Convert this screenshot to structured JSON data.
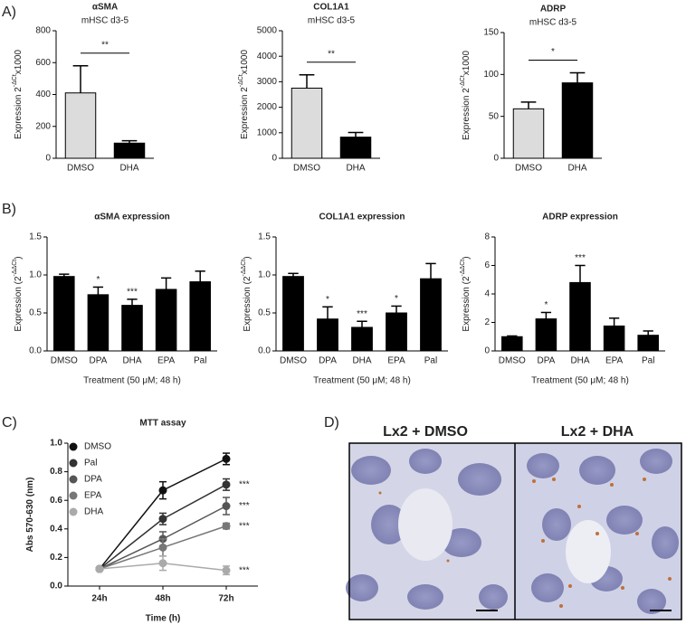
{
  "panel_labels": [
    "A)",
    "B)",
    "C)",
    "D)"
  ],
  "chart_data": [
    {
      "type": "bar",
      "title": "αSMA",
      "subtitle": "mHSC d3-5",
      "y_label": "Expression 2",
      "y_label_sup": "-ΔCt",
      "y_label_suffix": "x1000",
      "categories": [
        "DMSO",
        "DHA"
      ],
      "values": [
        410,
        95
      ],
      "errors": [
        170,
        15
      ],
      "colors": [
        "#dcdcdc",
        "#000000"
      ],
      "ylim": [
        0,
        800
      ],
      "yticks": [
        0,
        200,
        400,
        600,
        800
      ],
      "significance": "**"
    },
    {
      "type": "bar",
      "title": "COL1A1",
      "subtitle": "mHSC d3-5",
      "y_label": "Expression 2",
      "y_label_sup": "-ΔCt",
      "y_label_suffix": "x1000",
      "categories": [
        "DMSO",
        "DHA"
      ],
      "values": [
        2750,
        830
      ],
      "errors": [
        520,
        180
      ],
      "colors": [
        "#dcdcdc",
        "#000000"
      ],
      "ylim": [
        0,
        5000
      ],
      "yticks": [
        0,
        1000,
        2000,
        3000,
        4000,
        5000
      ],
      "significance": "**"
    },
    {
      "type": "bar",
      "title": "ADRP",
      "subtitle": "mHSC d3-5",
      "y_label": "Expression 2",
      "y_label_sup": "-ΔCt",
      "y_label_suffix": "x1000",
      "categories": [
        "DMSO",
        "DHA"
      ],
      "values": [
        59,
        90
      ],
      "errors": [
        8,
        12
      ],
      "colors": [
        "#dcdcdc",
        "#000000"
      ],
      "ylim": [
        0,
        150
      ],
      "yticks": [
        0,
        50,
        100,
        150
      ],
      "significance": "*"
    },
    {
      "type": "bar",
      "title": "αSMA expression",
      "y_label": "Expression (2",
      "y_label_sup": "-ΔΔCt",
      "y_label_suffix": ")",
      "x_label": "Treatment (50 μM; 48 h)",
      "categories": [
        "DMSO",
        "DPA",
        "DHA",
        "EPA",
        "Pal"
      ],
      "values": [
        0.98,
        0.74,
        0.6,
        0.81,
        0.91
      ],
      "errors": [
        0.03,
        0.1,
        0.08,
        0.15,
        0.14
      ],
      "color": "#000000",
      "ylim": [
        0,
        1.5
      ],
      "yticks": [
        {
          "value": 0,
          "label": "0.0"
        },
        {
          "value": 0.5,
          "label": "0.5"
        },
        {
          "value": 1,
          "label": "1.0"
        },
        {
          "value": 1.5,
          "label": "1.5"
        }
      ],
      "significance": [
        null,
        "*",
        "***",
        null,
        null
      ]
    },
    {
      "type": "bar",
      "title": "COL1A1 expression",
      "y_label": "Expression (2",
      "y_label_sup": "-ΔΔCt",
      "y_label_suffix": ")",
      "x_label": "Treatment (50 μM; 48 h)",
      "categories": [
        "DMSO",
        "DPA",
        "DHA",
        "EPA",
        "Pal"
      ],
      "values": [
        0.98,
        0.42,
        0.31,
        0.5,
        0.95
      ],
      "errors": [
        0.04,
        0.16,
        0.08,
        0.09,
        0.2
      ],
      "color": "#000000",
      "ylim": [
        0,
        1.5
      ],
      "yticks": [
        {
          "value": 0,
          "label": "0.0"
        },
        {
          "value": 0.5,
          "label": "0.5"
        },
        {
          "value": 1,
          "label": "1.0"
        },
        {
          "value": 1.5,
          "label": "1.5"
        }
      ],
      "significance": [
        null,
        "*",
        "***",
        "*",
        null
      ]
    },
    {
      "type": "bar",
      "title": "ADRP expression",
      "y_label": "Expression (2",
      "y_label_sup": "-ΔΔCt",
      "y_label_suffix": ")",
      "x_label": "Treatment (50 μM; 48 h)",
      "categories": [
        "DMSO",
        "DPA",
        "DHA",
        "EPA",
        "Pal"
      ],
      "values": [
        1,
        2.25,
        4.8,
        1.75,
        1.1
      ],
      "errors": [
        0.05,
        0.45,
        1.2,
        0.55,
        0.3
      ],
      "color": "#000000",
      "ylim": [
        0,
        8
      ],
      "yticks": [
        0,
        2,
        4,
        6,
        8
      ],
      "significance": [
        null,
        "*",
        "***",
        null,
        null
      ]
    },
    {
      "type": "line",
      "title": "MTT assay",
      "x_label": "Time (h)",
      "y_label": "Abs 570-630 (nm)",
      "categories": [
        "24h",
        "48h",
        "72h"
      ],
      "ylim": [
        0,
        1
      ],
      "yticks": [
        {
          "value": 0,
          "label": "0.0"
        },
        {
          "value": 0.2,
          "label": "0.2"
        },
        {
          "value": 0.4,
          "label": "0.4"
        },
        {
          "value": 0.6,
          "label": "0.6"
        },
        {
          "value": 0.8,
          "label": "0.8"
        },
        {
          "value": 1,
          "label": "1.0"
        }
      ],
      "legend": "top-left",
      "series": [
        {
          "name": "DMSO",
          "color": "#111111",
          "values": [
            0.12,
            0.67,
            0.89
          ],
          "errors": [
            0.01,
            0.06,
            0.04
          ]
        },
        {
          "name": "Pal",
          "color": "#333333",
          "values": [
            0.12,
            0.47,
            0.71
          ],
          "errors": [
            0.01,
            0.04,
            0.04
          ],
          "significance": "***"
        },
        {
          "name": "DPA",
          "color": "#555555",
          "values": [
            0.12,
            0.33,
            0.56
          ],
          "errors": [
            0.01,
            0.05,
            0.06
          ],
          "significance": "***"
        },
        {
          "name": "EPA",
          "color": "#777777",
          "values": [
            0.12,
            0.27,
            0.42
          ],
          "errors": [
            0.01,
            0.06,
            0.02
          ],
          "significance": "***"
        },
        {
          "name": "DHA",
          "color": "#aaaaaa",
          "values": [
            0.12,
            0.16,
            0.11
          ],
          "errors": [
            0.01,
            0.05,
            0.03
          ],
          "significance": "***"
        }
      ]
    }
  ],
  "images": {
    "labels": [
      "Lx2 + DMSO",
      "Lx2 + DHA"
    ]
  }
}
